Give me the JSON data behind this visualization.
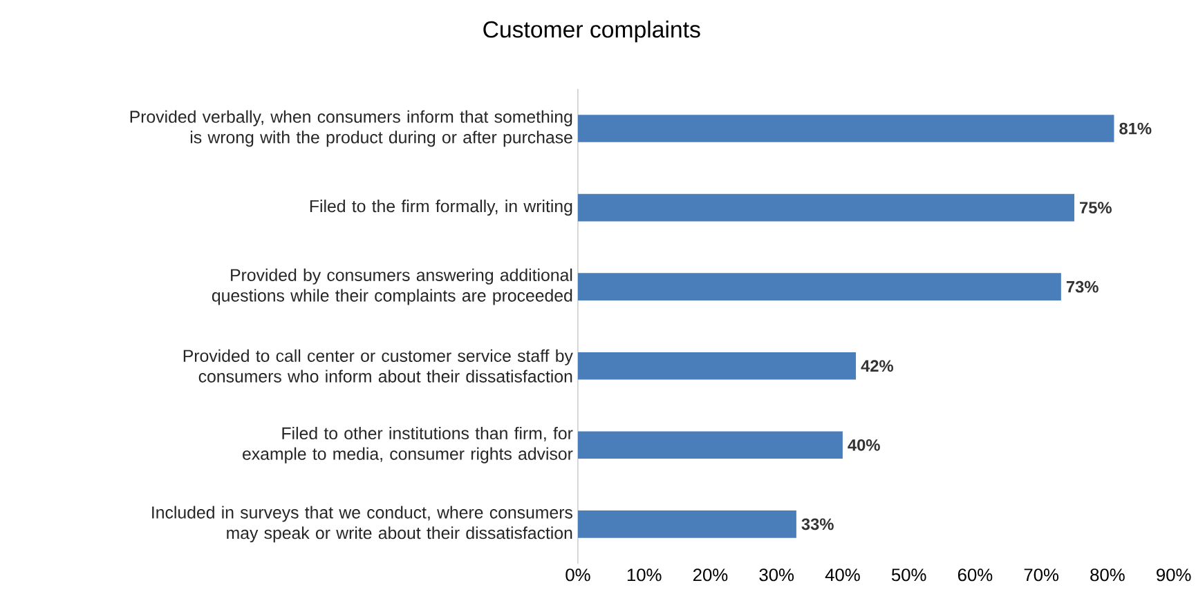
{
  "chart_data": {
    "type": "bar",
    "orientation": "horizontal",
    "title": "Customer complaints",
    "categories": [
      "Provided verbally, when consumers inform that something is wrong with the product during or after purchase",
      "Filed to the firm formally, in writing",
      "Provided by consumers answering additional questions while their complaints are proceeded",
      "Provided to call center or customer service staff by consumers who inform about their dissatisfaction",
      "Filed to other institutions than firm, for example to media, consumer rights advisor",
      "Included in surveys that we conduct, where consumers may speak or write about their dissatisfaction"
    ],
    "values": [
      81,
      75,
      73,
      42,
      40,
      33
    ],
    "value_labels": [
      "81%",
      "75%",
      "73%",
      "42%",
      "40%",
      "33%"
    ],
    "color": "#4a7ebb",
    "xlim": [
      0,
      90
    ],
    "xticks": [
      {
        "value": 0,
        "label": "0%"
      },
      {
        "value": 10,
        "label": "10%"
      },
      {
        "value": 20,
        "label": "20%"
      },
      {
        "value": 30,
        "label": "30%"
      },
      {
        "value": 40,
        "label": "40%"
      },
      {
        "value": 50,
        "label": "50%"
      },
      {
        "value": 60,
        "label": "60%"
      },
      {
        "value": 70,
        "label": "70%"
      },
      {
        "value": 80,
        "label": "80%"
      },
      {
        "value": 90,
        "label": "90%"
      }
    ]
  }
}
